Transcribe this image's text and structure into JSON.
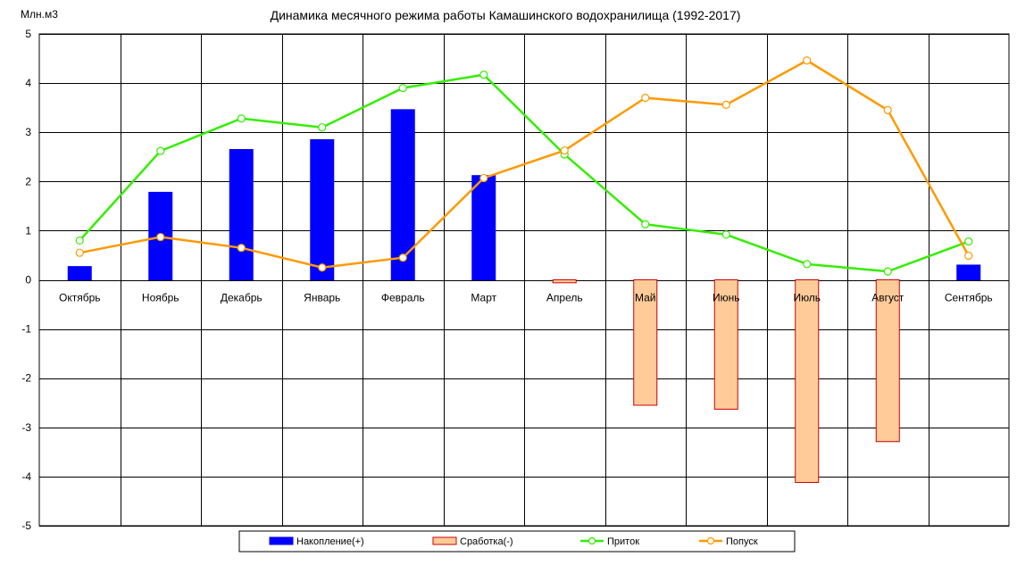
{
  "chart_data": {
    "type": "bar",
    "title": "Динамика месячного режима работы Камашинского водохранилища (1992-2017)",
    "ylabel": "Млн.м3",
    "xlabel": "",
    "ylim": [
      -5,
      5
    ],
    "yticks": [
      5,
      4,
      3,
      2,
      1,
      0,
      -1,
      -2,
      -3,
      -4,
      -5
    ],
    "grid": true,
    "legend_position": "bottom",
    "categories": [
      "Октябрь",
      "Ноябрь",
      "Декабрь",
      "Январь",
      "Февраль",
      "Март",
      "Апрель",
      "Май",
      "Июнь",
      "Июль",
      "Август",
      "Сентябрь"
    ],
    "series": [
      {
        "name": "Накопление(+)",
        "kind": "bar",
        "color": "#0000FF",
        "stroke": "#0000FF",
        "values": [
          0.27,
          1.78,
          2.65,
          2.85,
          3.46,
          2.12,
          0,
          0,
          0,
          0,
          0,
          0.3
        ]
      },
      {
        "name": "Сработка(-)",
        "kind": "bar",
        "color": "#FFCC99",
        "stroke": "#CC0000",
        "values": [
          0,
          0,
          0,
          0,
          0,
          0,
          -0.06,
          -2.55,
          -2.63,
          -4.12,
          -3.29,
          0
        ]
      },
      {
        "name": "Приток",
        "kind": "line",
        "color": "#33EE00",
        "values": [
          0.8,
          2.62,
          3.28,
          3.1,
          3.9,
          4.17,
          2.55,
          1.13,
          0.92,
          0.32,
          0.17,
          0.78
        ]
      },
      {
        "name": "Попуск",
        "kind": "line",
        "color": "#FF9900",
        "values": [
          0.55,
          0.87,
          0.65,
          0.25,
          0.45,
          2.07,
          2.63,
          3.7,
          3.56,
          4.46,
          3.45,
          0.49
        ]
      }
    ]
  }
}
